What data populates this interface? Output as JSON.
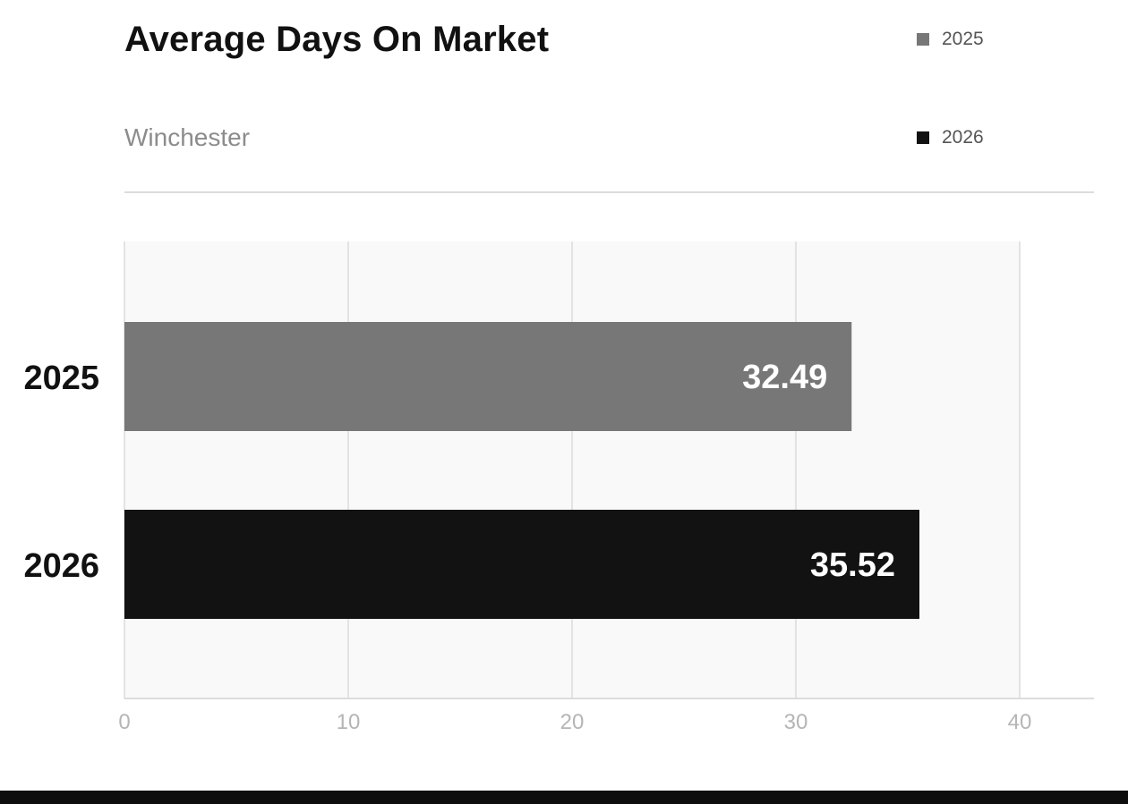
{
  "chart_data": {
    "type": "bar",
    "orientation": "horizontal",
    "title": "Average Days On Market",
    "subtitle": "Winchester",
    "categories": [
      "2025",
      "2026"
    ],
    "values": [
      32.49,
      35.52
    ],
    "value_labels": [
      "32.49",
      "35.52"
    ],
    "bar_colors": [
      "#777777",
      "#121212"
    ],
    "legend": [
      {
        "label": "2025",
        "color": "#777777"
      },
      {
        "label": "2026",
        "color": "#121212"
      }
    ],
    "legend_placement": "top-right",
    "xlim": [
      0,
      43.3
    ],
    "x_ticks": [
      0,
      10,
      20,
      30,
      40
    ],
    "x_tick_labels": [
      "0",
      "10",
      "20",
      "30",
      "40"
    ],
    "grid": true,
    "xlabel": "",
    "ylabel": ""
  },
  "colors": {
    "plot_background": "#f9f9f9",
    "grid": "#e3e3e3",
    "axis": "#dcdcdc",
    "tick_label": "#b5b5b5",
    "category_label": "#111111",
    "value_label": "#ffffff"
  }
}
